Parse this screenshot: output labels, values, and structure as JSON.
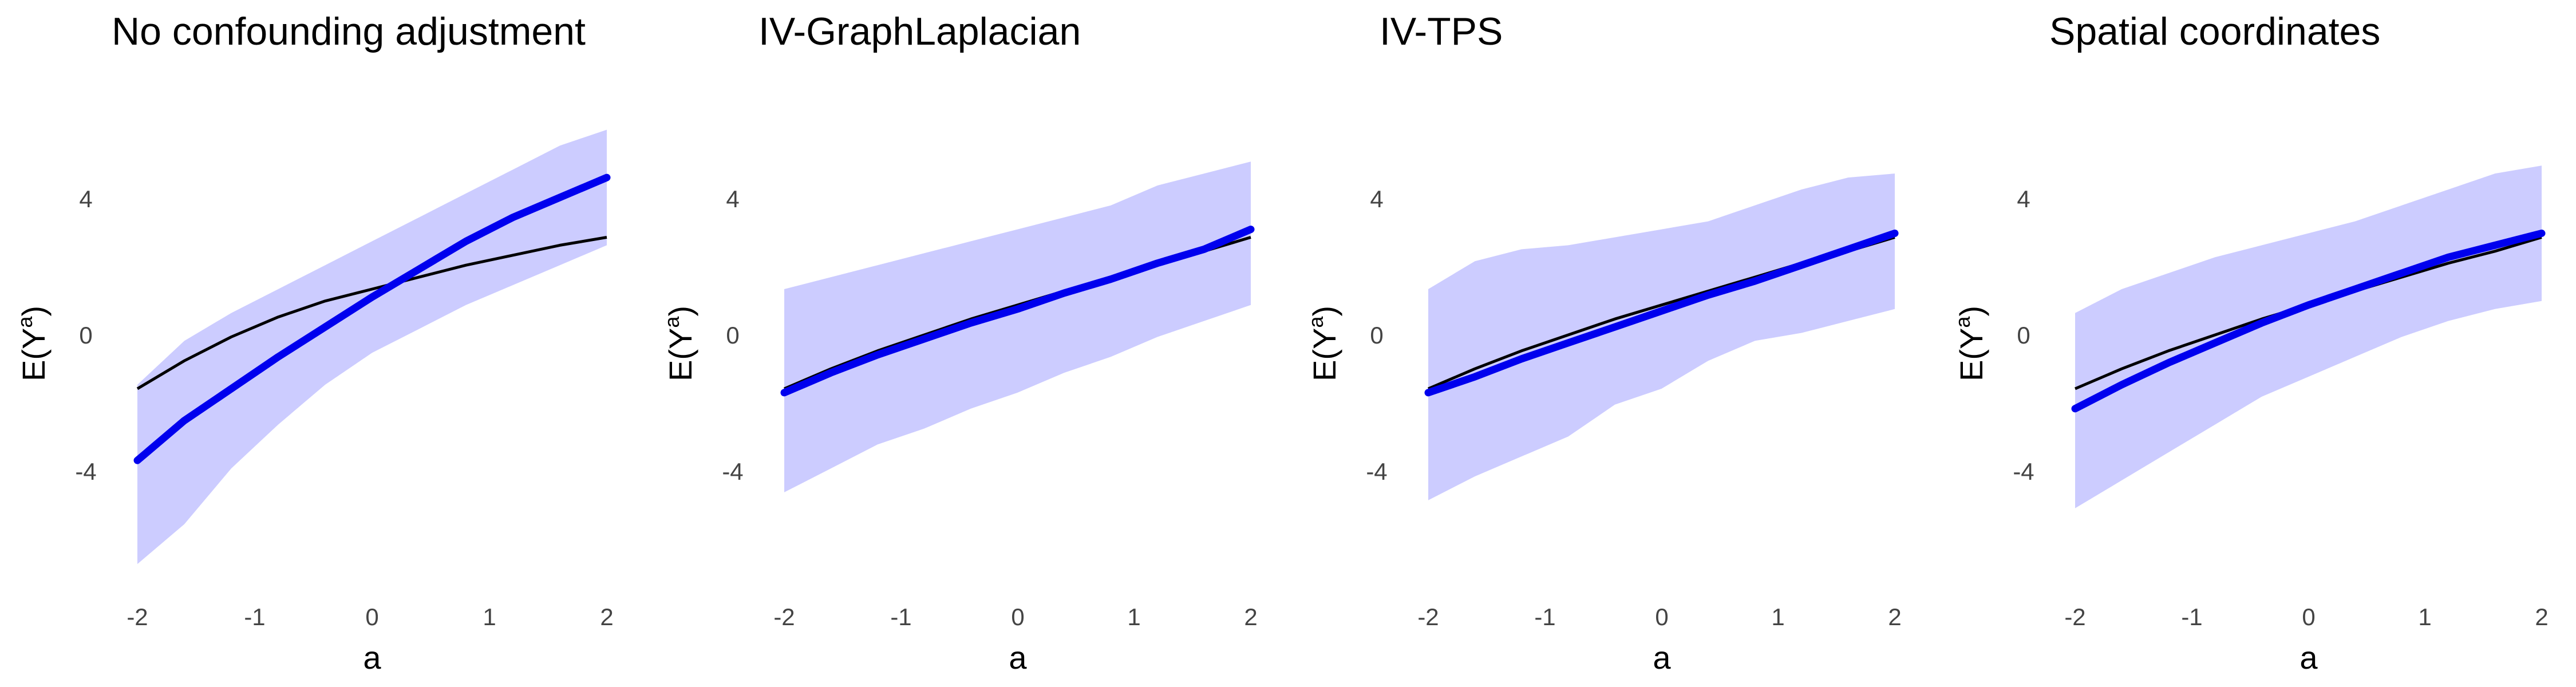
{
  "colors": {
    "band": "#ccccff",
    "estimate": "#0000ee",
    "truth": "#000000"
  },
  "chart_data": [
    {
      "type": "line",
      "title": "No confounding adjustment",
      "xlabel": "a",
      "ylabel": {
        "base": "E(",
        "var": "Y",
        "sup": "a",
        "close": ")"
      },
      "xticks": [
        "-2",
        "-1",
        "0",
        "1",
        "2"
      ],
      "yticks": [
        "4",
        "0",
        "-4"
      ],
      "xlim": [
        -2,
        2
      ],
      "ylim": [
        -6.5,
        6
      ],
      "grid": false,
      "x": [
        -2,
        -1.6,
        -1.2,
        -0.8,
        -0.4,
        0,
        0.4,
        0.8,
        1.2,
        1.6,
        2
      ],
      "series": [
        {
          "role": "band_upper",
          "values": [
            -1.5,
            -0.4,
            0.3,
            0.9,
            1.5,
            2.1,
            2.7,
            3.3,
            3.9,
            4.5,
            4.9
          ]
        },
        {
          "role": "band_lower",
          "values": [
            -6.0,
            -5.0,
            -3.6,
            -2.5,
            -1.5,
            -0.7,
            -0.1,
            0.5,
            1.0,
            1.5,
            2.0
          ]
        },
        {
          "role": "estimate",
          "values": [
            -3.4,
            -2.4,
            -1.6,
            -0.8,
            -0.05,
            0.7,
            1.4,
            2.1,
            2.7,
            3.2,
            3.7
          ]
        },
        {
          "role": "truth",
          "values": [
            -1.6,
            -0.9,
            -0.3,
            0.2,
            0.6,
            0.9,
            1.2,
            1.5,
            1.75,
            2.0,
            2.2
          ]
        }
      ]
    },
    {
      "type": "line",
      "title": "IV-GraphLaplacian",
      "xlabel": "a",
      "ylabel": {
        "base": "E(",
        "var": "Y",
        "sup": "a",
        "close": ")"
      },
      "xticks": [
        "-2",
        "-1",
        "0",
        "1",
        "2"
      ],
      "yticks": [
        "4",
        "0",
        "-4"
      ],
      "xlim": [
        -2,
        2
      ],
      "ylim": [
        -6.5,
        6
      ],
      "grid": false,
      "x": [
        -2,
        -1.6,
        -1.2,
        -0.8,
        -0.4,
        0,
        0.4,
        0.8,
        1.2,
        1.6,
        2
      ],
      "series": [
        {
          "role": "band_upper",
          "values": [
            0.9,
            1.2,
            1.5,
            1.8,
            2.1,
            2.4,
            2.7,
            3.0,
            3.5,
            3.8,
            4.1
          ]
        },
        {
          "role": "band_lower",
          "values": [
            -4.2,
            -3.6,
            -3.0,
            -2.6,
            -2.1,
            -1.7,
            -1.2,
            -0.8,
            -0.3,
            0.1,
            0.5
          ]
        },
        {
          "role": "estimate",
          "values": [
            -1.7,
            -1.2,
            -0.75,
            -0.35,
            0.05,
            0.4,
            0.8,
            1.15,
            1.55,
            1.9,
            2.4
          ]
        },
        {
          "role": "truth",
          "values": [
            -1.6,
            -1.1,
            -0.65,
            -0.25,
            0.15,
            0.5,
            0.85,
            1.2,
            1.55,
            1.85,
            2.2
          ]
        }
      ]
    },
    {
      "type": "line",
      "title": "IV-TPS",
      "xlabel": "a",
      "ylabel": {
        "base": "E(",
        "var": "Y",
        "sup": "a",
        "close": ")"
      },
      "xticks": [
        "-2",
        "-1",
        "0",
        "1",
        "2"
      ],
      "yticks": [
        "4",
        "0",
        "-4"
      ],
      "xlim": [
        -2,
        2
      ],
      "ylim": [
        -6.5,
        6
      ],
      "grid": false,
      "x": [
        -2,
        -1.6,
        -1.2,
        -0.8,
        -0.4,
        0,
        0.4,
        0.8,
        1.2,
        1.6,
        2
      ],
      "series": [
        {
          "role": "band_upper",
          "values": [
            0.9,
            1.6,
            1.9,
            2.0,
            2.2,
            2.4,
            2.6,
            3.0,
            3.4,
            3.7,
            3.8
          ]
        },
        {
          "role": "band_lower",
          "values": [
            -4.4,
            -3.8,
            -3.3,
            -2.8,
            -2.0,
            -1.6,
            -0.9,
            -0.4,
            -0.2,
            0.1,
            0.4
          ]
        },
        {
          "role": "estimate",
          "values": [
            -1.7,
            -1.3,
            -0.85,
            -0.45,
            -0.05,
            0.35,
            0.75,
            1.1,
            1.5,
            1.9,
            2.3
          ]
        },
        {
          "role": "truth",
          "values": [
            -1.6,
            -1.1,
            -0.65,
            -0.25,
            0.15,
            0.5,
            0.85,
            1.2,
            1.55,
            1.85,
            2.2
          ]
        }
      ]
    },
    {
      "type": "line",
      "title": "Spatial coordinates",
      "xlabel": "a",
      "ylabel": {
        "base": "E(",
        "var": "Y",
        "sup": "a",
        "close": ")"
      },
      "xticks": [
        "-2",
        "-1",
        "0",
        "1",
        "2"
      ],
      "yticks": [
        "4",
        "0",
        "-4"
      ],
      "xlim": [
        -2,
        2
      ],
      "ylim": [
        -6.5,
        6
      ],
      "grid": false,
      "x": [
        -2,
        -1.6,
        -1.2,
        -0.8,
        -0.4,
        0,
        0.4,
        0.8,
        1.2,
        1.6,
        2
      ],
      "series": [
        {
          "role": "band_upper",
          "values": [
            0.3,
            0.9,
            1.3,
            1.7,
            2.0,
            2.3,
            2.6,
            3.0,
            3.4,
            3.8,
            4.0
          ]
        },
        {
          "role": "band_lower",
          "values": [
            -4.6,
            -3.9,
            -3.2,
            -2.5,
            -1.8,
            -1.3,
            -0.8,
            -0.3,
            0.1,
            0.4,
            0.6
          ]
        },
        {
          "role": "estimate",
          "values": [
            -2.1,
            -1.5,
            -0.95,
            -0.45,
            0.05,
            0.5,
            0.9,
            1.3,
            1.7,
            2.0,
            2.3
          ]
        },
        {
          "role": "truth",
          "values": [
            -1.6,
            -1.1,
            -0.65,
            -0.25,
            0.15,
            0.5,
            0.85,
            1.2,
            1.55,
            1.85,
            2.2
          ]
        }
      ]
    }
  ]
}
